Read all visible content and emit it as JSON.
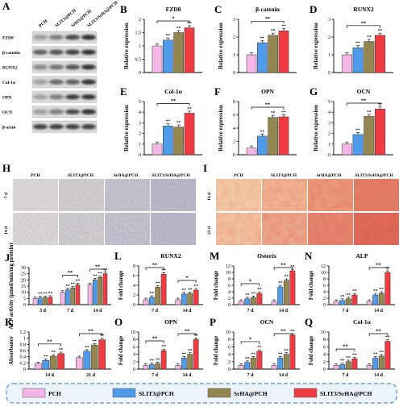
{
  "colors": {
    "PCH": "#f4b6e6",
    "SLIT3@PCH": "#4f9bea",
    "SrHA@PCH": "#938651",
    "SLIT3/SrHA@PCH": "#ef3b41"
  },
  "legend": [
    "PCH",
    "SLIT3@PCH",
    "SrHA@PCH",
    "SLIT3/SrHA@PCH"
  ],
  "panel_A": {
    "letter": "A",
    "lanes": [
      "PCH",
      "SLIT3@PCH",
      "SrHA@PCH",
      "SLIT3/SrHA@PCH"
    ],
    "rows": [
      "FZD8",
      "β-catenin",
      "RUNX2",
      "Col-1α",
      "OPN",
      "OCN",
      "β-actin"
    ]
  },
  "panel_H": {
    "letter": "H",
    "cols": [
      "PCH",
      "SLIT3@PCH",
      "SrHA@PCH",
      "SLIT3/SrHA@PCH"
    ],
    "rows": [
      "7 d",
      "14 d"
    ]
  },
  "panel_I": {
    "letter": "I",
    "cols": [
      "PCH",
      "SLIT3@PCH",
      "SrHA@PCH",
      "SLIT3/SrHA@PCH"
    ],
    "rows": [
      "14 d",
      "21 d"
    ]
  },
  "chart_data": [
    {
      "id": "B",
      "type": "bar",
      "title": "FZD8",
      "ylabel": "Relative expression",
      "ylim": [
        0,
        2.0
      ],
      "yticks": [
        0.0,
        0.5,
        1.0,
        1.5,
        2.0
      ],
      "categories": [
        ""
      ],
      "series": [
        {
          "name": "PCH",
          "values": [
            1.0
          ]
        },
        {
          "name": "SLIT3@PCH",
          "values": [
            1.22
          ]
        },
        {
          "name": "SrHA@PCH",
          "values": [
            1.5
          ]
        },
        {
          "name": "SLIT3/SrHA@PCH",
          "values": [
            1.68
          ]
        }
      ],
      "significance": [
        "*",
        "**",
        "**"
      ]
    },
    {
      "id": "C",
      "type": "bar",
      "title": "β-catenin",
      "ylabel": "Relative expression",
      "ylim": [
        0,
        3
      ],
      "yticks": [
        0,
        1,
        2,
        3
      ],
      "categories": [
        ""
      ],
      "series": [
        {
          "name": "PCH",
          "values": [
            1.0
          ]
        },
        {
          "name": "SLIT3@PCH",
          "values": [
            1.68
          ]
        },
        {
          "name": "SrHA@PCH",
          "values": [
            2.1
          ]
        },
        {
          "name": "SLIT3/SrHA@PCH",
          "values": [
            2.35
          ]
        }
      ],
      "significance": [
        "**",
        "**",
        "**"
      ]
    },
    {
      "id": "D",
      "type": "bar",
      "title": "RUNX2",
      "ylabel": "Relative expression",
      "ylim": [
        0,
        3
      ],
      "yticks": [
        0,
        1,
        2,
        3
      ],
      "categories": [
        ""
      ],
      "series": [
        {
          "name": "PCH",
          "values": [
            1.0
          ]
        },
        {
          "name": "SLIT3@PCH",
          "values": [
            1.4
          ]
        },
        {
          "name": "SrHA@PCH",
          "values": [
            1.75
          ]
        },
        {
          "name": "SLIT3/SrHA@PCH",
          "values": [
            2.1
          ]
        }
      ],
      "significance": [
        "**",
        "**",
        "**"
      ]
    },
    {
      "id": "E",
      "type": "bar",
      "title": "Col-1α",
      "ylabel": "Relative expression",
      "ylim": [
        0,
        5
      ],
      "yticks": [
        0,
        1,
        2,
        3,
        4,
        5
      ],
      "categories": [
        ""
      ],
      "series": [
        {
          "name": "PCH",
          "values": [
            1.0
          ]
        },
        {
          "name": "SLIT3@PCH",
          "values": [
            2.7
          ]
        },
        {
          "name": "SrHA@PCH",
          "values": [
            2.6
          ]
        },
        {
          "name": "SLIT3/SrHA@PCH",
          "values": [
            3.9
          ]
        }
      ],
      "significance": [
        "**",
        "**",
        "**"
      ]
    },
    {
      "id": "F",
      "type": "bar",
      "title": "OPN",
      "ylabel": "Relative expression",
      "ylim": [
        0,
        8
      ],
      "yticks": [
        0,
        2,
        4,
        6,
        8
      ],
      "categories": [
        ""
      ],
      "series": [
        {
          "name": "PCH",
          "values": [
            1.0
          ]
        },
        {
          "name": "SLIT3@PCH",
          "values": [
            2.8
          ]
        },
        {
          "name": "SrHA@PCH",
          "values": [
            5.6
          ]
        },
        {
          "name": "SLIT3/SrHA@PCH",
          "values": [
            5.7
          ]
        }
      ],
      "significance": [
        "**",
        "**",
        "**"
      ]
    },
    {
      "id": "G",
      "type": "bar",
      "title": "OCN",
      "ylabel": "Relative expression",
      "ylim": [
        0,
        5
      ],
      "yticks": [
        0,
        1,
        2,
        3,
        4,
        5
      ],
      "categories": [
        ""
      ],
      "series": [
        {
          "name": "PCH",
          "values": [
            1.0
          ]
        },
        {
          "name": "SLIT3@PCH",
          "values": [
            1.9
          ]
        },
        {
          "name": "SrHA@PCH",
          "values": [
            3.6
          ]
        },
        {
          "name": "SLIT3/SrHA@PCH",
          "values": [
            4.3
          ]
        }
      ],
      "significance": [
        "**",
        "**",
        "**"
      ]
    },
    {
      "id": "J",
      "type": "bar",
      "title": "",
      "ylabel": "ALP activity (μmol/min/mg protein)",
      "ylim": [
        0,
        30
      ],
      "yticks": [
        0,
        5,
        10,
        15,
        20,
        25,
        30
      ],
      "categories": [
        "3 d",
        "7 d",
        "14 d"
      ],
      "series": [
        {
          "name": "PCH",
          "values": [
            5,
            10,
            16
          ]
        },
        {
          "name": "SLIT3@PCH",
          "values": [
            5.5,
            12,
            20
          ]
        },
        {
          "name": "SrHA@PCH",
          "values": [
            5.8,
            13.5,
            22
          ]
        },
        {
          "name": "SLIT3/SrHA@PCH",
          "values": [
            6,
            16,
            25
          ]
        }
      ],
      "significance": [
        "",
        "**",
        "**"
      ]
    },
    {
      "id": "K",
      "type": "bar",
      "title": "",
      "ylabel": "Absorbance",
      "ylim": [
        0,
        1.2
      ],
      "yticks": [
        0.0,
        0.2,
        0.4,
        0.6,
        0.8,
        1.0,
        1.2
      ],
      "categories": [
        "14 d",
        "21 d"
      ],
      "series": [
        {
          "name": "PCH",
          "values": [
            0.18,
            0.37
          ]
        },
        {
          "name": "SLIT3@PCH",
          "values": [
            0.28,
            0.58
          ]
        },
        {
          "name": "SrHA@PCH",
          "values": [
            0.42,
            0.78
          ]
        },
        {
          "name": "SLIT3/SrHA@PCH",
          "values": [
            0.5,
            0.95
          ]
        }
      ],
      "significance": [
        "**",
        "**"
      ]
    },
    {
      "id": "L",
      "type": "bar",
      "title": "RUNX2",
      "ylabel": "Fold change",
      "ylim": [
        0,
        8
      ],
      "yticks": [
        0,
        2,
        4,
        6,
        8
      ],
      "categories": [
        "7 d",
        "14 d"
      ],
      "series": [
        {
          "name": "PCH",
          "values": [
            1.0,
            1.0
          ]
        },
        {
          "name": "SLIT3@PCH",
          "values": [
            1.5,
            2.2
          ]
        },
        {
          "name": "SrHA@PCH",
          "values": [
            3.6,
            2.3
          ]
        },
        {
          "name": "SLIT3/SrHA@PCH",
          "values": [
            6.3,
            3.0
          ]
        }
      ],
      "significance": [
        "**",
        "*"
      ]
    },
    {
      "id": "M",
      "type": "bar",
      "title": "Osterix",
      "ylabel": "Fold change",
      "ylim": [
        0,
        12
      ],
      "yticks": [
        0,
        2,
        4,
        6,
        8,
        10,
        12
      ],
      "categories": [
        "7 d",
        "14 d"
      ],
      "series": [
        {
          "name": "PCH",
          "values": [
            1.0,
            1.0
          ]
        },
        {
          "name": "SLIT3@PCH",
          "values": [
            1.8,
            5.5
          ]
        },
        {
          "name": "SrHA@PCH",
          "values": [
            2.2,
            7.5
          ]
        },
        {
          "name": "SLIT3/SrHA@PCH",
          "values": [
            3.5,
            10.5
          ]
        }
      ],
      "significance": [
        "*",
        "**"
      ]
    },
    {
      "id": "N",
      "type": "bar",
      "title": "ALP",
      "ylabel": "Fold change",
      "ylim": [
        0,
        12
      ],
      "yticks": [
        0,
        2,
        4,
        6,
        8,
        10,
        12
      ],
      "categories": [
        "7 d",
        "14 d"
      ],
      "series": [
        {
          "name": "PCH",
          "values": [
            1.0,
            1.0
          ]
        },
        {
          "name": "SLIT3@PCH",
          "values": [
            1.3,
            3.0
          ]
        },
        {
          "name": "SrHA@PCH",
          "values": [
            1.8,
            3.5
          ]
        },
        {
          "name": "SLIT3/SrHA@PCH",
          "values": [
            3.0,
            10.0
          ]
        }
      ],
      "significance": [
        "",
        "**"
      ]
    },
    {
      "id": "O",
      "type": "bar",
      "title": "OPN",
      "ylabel": "Fold change",
      "ylim": [
        0,
        10
      ],
      "yticks": [
        0,
        2,
        4,
        6,
        8,
        10
      ],
      "categories": [
        "7 d",
        "14 d"
      ],
      "series": [
        {
          "name": "PCH",
          "values": [
            1.0,
            1.0
          ]
        },
        {
          "name": "SLIT3@PCH",
          "values": [
            1.2,
            3.0
          ]
        },
        {
          "name": "SrHA@PCH",
          "values": [
            1.5,
            4.0
          ]
        },
        {
          "name": "SLIT3/SrHA@PCH",
          "values": [
            5.0,
            8.0
          ]
        }
      ],
      "significance": [
        "**",
        "**"
      ]
    },
    {
      "id": "P",
      "type": "bar",
      "title": "OCN",
      "ylabel": "Fold change",
      "ylim": [
        0,
        10
      ],
      "yticks": [
        0,
        2,
        4,
        6,
        8,
        10
      ],
      "categories": [
        "7 d",
        "14 d"
      ],
      "series": [
        {
          "name": "PCH",
          "values": [
            1.0,
            1.0
          ]
        },
        {
          "name": "SLIT3@PCH",
          "values": [
            1.8,
            3.0
          ]
        },
        {
          "name": "SrHA@PCH",
          "values": [
            3.0,
            4.0
          ]
        },
        {
          "name": "SLIT3/SrHA@PCH",
          "values": [
            4.8,
            9.2
          ]
        }
      ],
      "significance": [
        "*",
        "**"
      ]
    },
    {
      "id": "Q",
      "type": "bar",
      "title": "Col-1α",
      "ylabel": "Fold change",
      "ylim": [
        0,
        10
      ],
      "yticks": [
        0,
        2,
        4,
        6,
        8,
        10
      ],
      "categories": [
        "7 d",
        "14 d"
      ],
      "series": [
        {
          "name": "PCH",
          "values": [
            1.0,
            1.0
          ]
        },
        {
          "name": "SLIT3@PCH",
          "values": [
            1.2,
            3.0
          ]
        },
        {
          "name": "SrHA@PCH",
          "values": [
            2.0,
            3.5
          ]
        },
        {
          "name": "SLIT3/SrHA@PCH",
          "values": [
            2.8,
            7.5
          ]
        }
      ],
      "significance": [
        "**",
        "**"
      ]
    }
  ]
}
